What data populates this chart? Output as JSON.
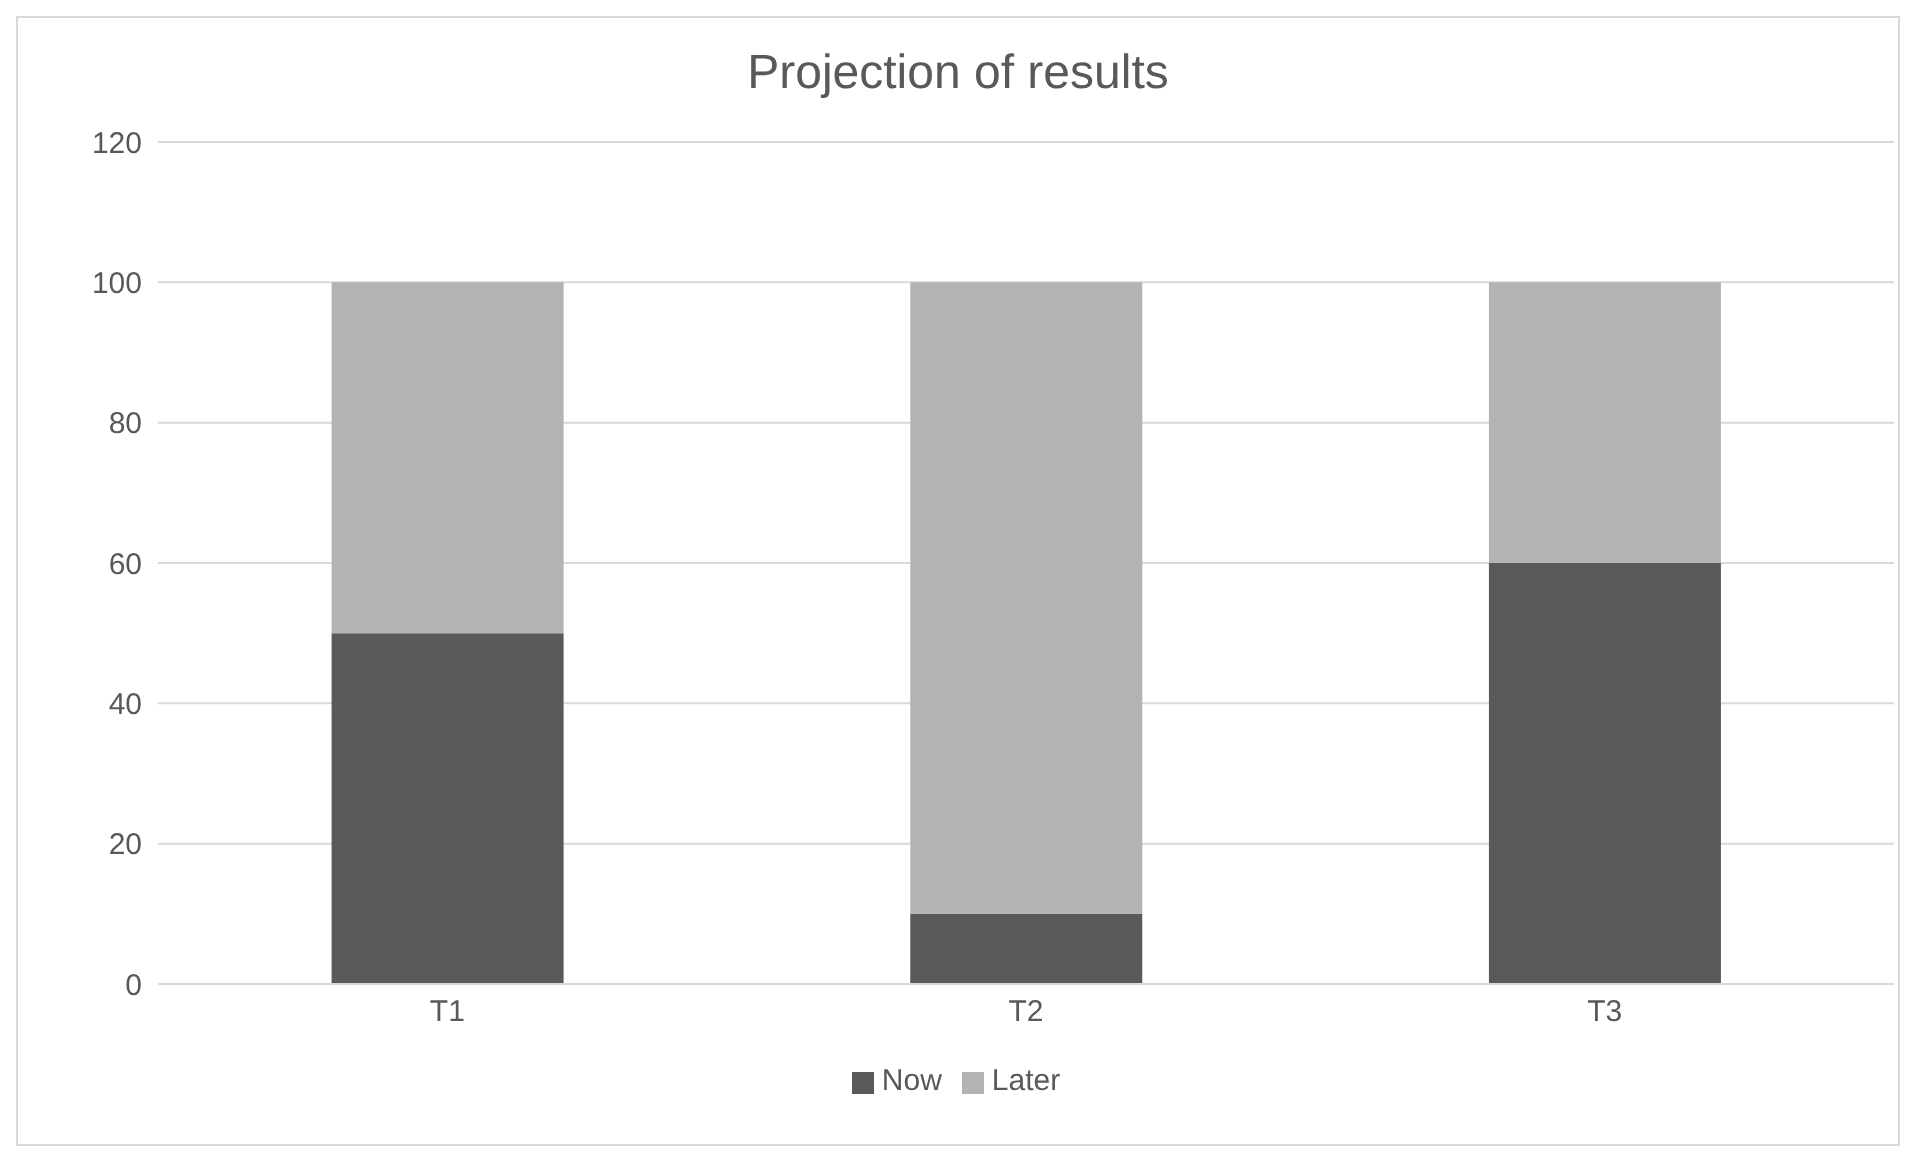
{
  "chart_data": {
    "type": "bar",
    "title": "Projection of results",
    "categories": [
      "T1",
      "T2",
      "T3"
    ],
    "stacked": true,
    "series": [
      {
        "name": "Now",
        "color": "#595959",
        "values": [
          50,
          10,
          60
        ]
      },
      {
        "name": "Later",
        "color": "#b3b3b3",
        "values": [
          50,
          90,
          40
        ]
      }
    ],
    "ylim": [
      0,
      120
    ],
    "yticks": [
      0,
      20,
      40,
      60,
      80,
      100,
      120
    ],
    "grid": "y",
    "legend": "bottom"
  }
}
